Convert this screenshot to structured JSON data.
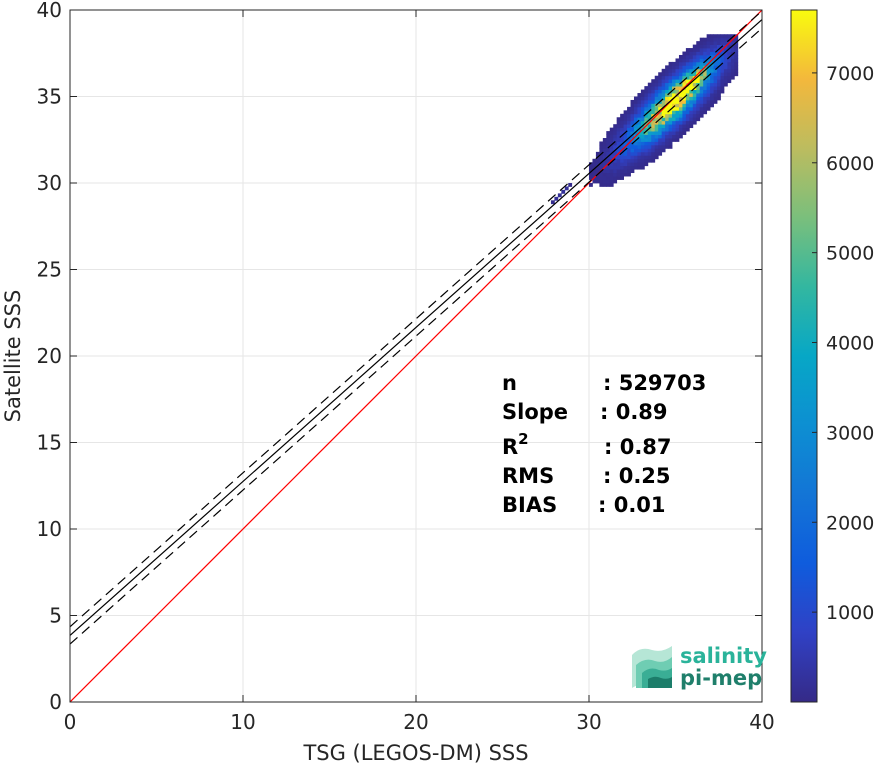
{
  "chart_data": {
    "type": "heatmap",
    "subtype": "density-scatter",
    "title": "",
    "xlabel": "TSG (LEGOS-DM) SSS",
    "ylabel": "Satellite SSS",
    "xlim": [
      0,
      40
    ],
    "ylim": [
      0,
      40
    ],
    "xticks": [
      "0",
      "10",
      "20",
      "30",
      "40"
    ],
    "yticks": [
      "0",
      "5",
      "10",
      "15",
      "20",
      "25",
      "30",
      "35",
      "40"
    ],
    "grid": true,
    "colorbar": {
      "min": 0,
      "max": 7700,
      "ticks": [
        "1000",
        "2000",
        "3000",
        "4000",
        "5000",
        "6000",
        "7000"
      ],
      "colormap": "parula"
    },
    "reference_line": {
      "slope": 1,
      "intercept": 0,
      "color": "#ff0000"
    },
    "fit_line": {
      "slope": 0.89,
      "intercept": 3.85,
      "color": "#000000"
    },
    "fit_bounds": [
      {
        "slope": 0.89,
        "intercept": 4.35,
        "style": "dashed"
      },
      {
        "slope": 0.89,
        "intercept": 3.35,
        "style": "dashed"
      }
    ],
    "density_clusters": [
      {
        "x": 34.8,
        "y": 34.6,
        "sx": 1.1,
        "sy": 1.0,
        "peak": 7700
      },
      {
        "x": 33.4,
        "y": 33.2,
        "sx": 1.1,
        "sy": 0.9,
        "peak": 900
      },
      {
        "x": 36.0,
        "y": 35.9,
        "sx": 0.5,
        "sy": 0.6,
        "peak": 2600
      },
      {
        "x": 28.3,
        "y": 29.3,
        "sx": 0.4,
        "sy": 0.12,
        "peak": 250
      }
    ],
    "stats": [
      {
        "label": "n",
        "sup": "",
        "value": ": 529703"
      },
      {
        "label": "Slope",
        "sup": "",
        "value": ": 0.89"
      },
      {
        "label": "R",
        "sup": "2",
        "value": ": 0.87"
      },
      {
        "label": "RMS",
        "sup": "",
        "value": ": 0.25"
      },
      {
        "label": "BIAS",
        "sup": "",
        "value": ": 0.01"
      }
    ]
  },
  "logo": {
    "line1": "salinity",
    "line2": "pi-mep"
  }
}
